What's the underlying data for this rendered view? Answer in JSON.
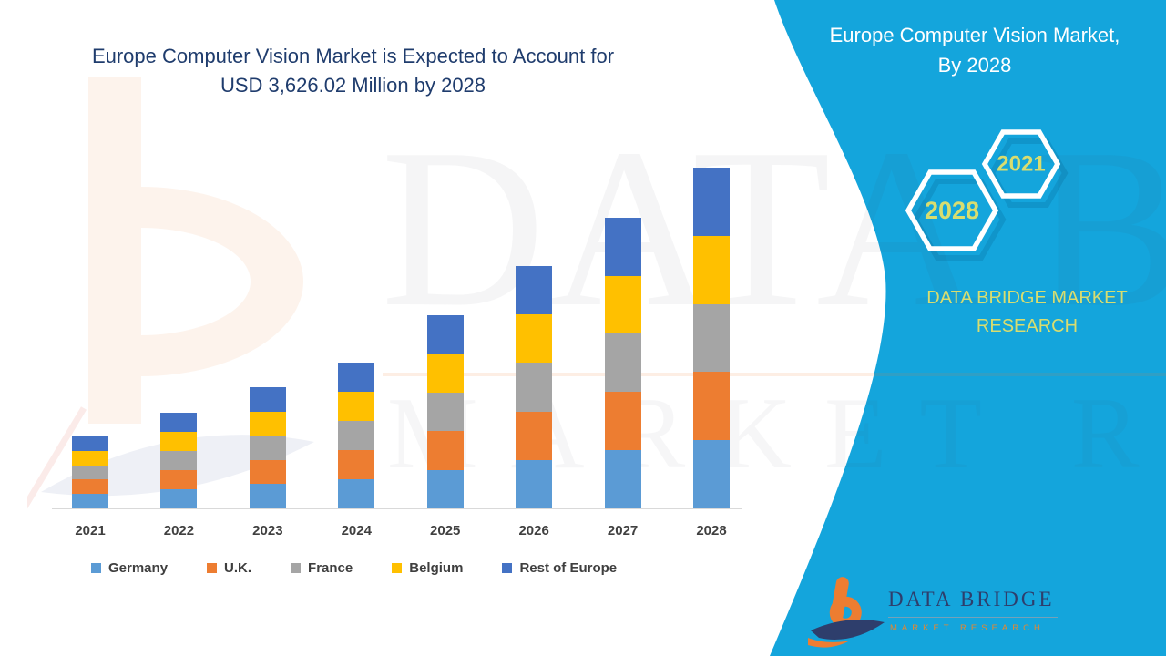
{
  "header": {
    "title_line1": "Europe Computer Vision Market is Expected to Account for",
    "title_line2": "USD 3,626.02 Million by 2028"
  },
  "side_panel": {
    "title": "Europe Computer Vision Market, By 2028",
    "hexagon_years": {
      "large": "2028",
      "small": "2021"
    },
    "brand_caption": "DATA BRIDGE MARKET RESEARCH",
    "panel_color": "#14A5DC",
    "accent_text_color": "#D9DD6F"
  },
  "watermark": {
    "big_text": "DATA BRIDGE",
    "small_text": "MARKET RESEARCH"
  },
  "footer_logo": {
    "title": "DATA BRIDGE",
    "subtitle": "MARKET RESEARCH"
  },
  "chart_data": {
    "type": "bar",
    "stacked": true,
    "title": "Europe Computer Vision Market is Expected to Account for USD 3,626.02 Million by 2028",
    "unit": "USD Million",
    "categories": [
      "2021",
      "2022",
      "2023",
      "2024",
      "2025",
      "2026",
      "2027",
      "2028"
    ],
    "series": [
      {
        "name": "Germany",
        "color": "#5B9BD5",
        "values": [
          153,
          204,
          258,
          310,
          411,
          516,
          619,
          725.2
        ]
      },
      {
        "name": "U.K.",
        "color": "#ED7D31",
        "values": [
          153,
          204,
          258,
          310,
          411,
          516,
          619,
          725.2
        ]
      },
      {
        "name": "France",
        "color": "#A5A5A5",
        "values": [
          153,
          204,
          258,
          310,
          411,
          516,
          619,
          725.2
        ]
      },
      {
        "name": "Belgium",
        "color": "#FFC000",
        "values": [
          153,
          204,
          258,
          310,
          411,
          516,
          619,
          725.2
        ]
      },
      {
        "name": "Rest of Europe",
        "color": "#4472C4",
        "values": [
          153,
          204,
          258,
          310,
          411,
          516,
          619,
          725.22
        ]
      }
    ],
    "estimated_totals": [
      765,
      1020,
      1290,
      1550,
      2055,
      2580,
      3095,
      3626.02
    ],
    "ylim": [
      0,
      3700
    ],
    "y_axis_visible": false,
    "gridlines": false,
    "legend_position": "bottom"
  }
}
